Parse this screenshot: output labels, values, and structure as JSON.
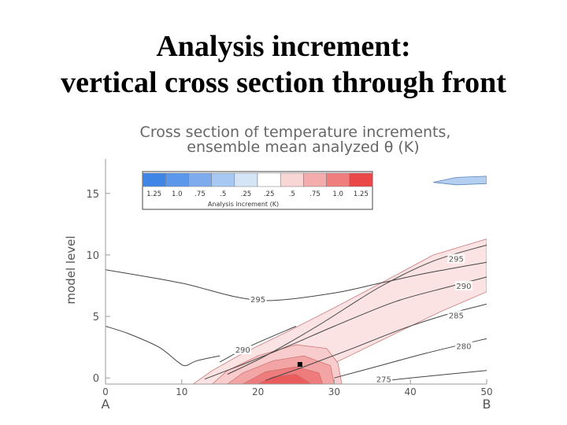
{
  "slide": {
    "title_line1": "Analysis increment:",
    "title_line2": "vertical cross section through front"
  },
  "chart_data": {
    "type": "heatmap",
    "title_line1": "Cross section of temperature increments,",
    "title_line2": "ensemble mean analyzed θ (K)",
    "xlabel": "",
    "ylabel": "model level",
    "xlim": [
      0,
      50
    ],
    "ylim": [
      -0.5,
      17.8
    ],
    "x_ticks": [
      0,
      10,
      20,
      30,
      40,
      50
    ],
    "y_ticks": [
      0,
      5,
      10,
      15
    ],
    "x_end_labels": [
      "A",
      "B"
    ],
    "legend": {
      "title": "Analysis increment (K)",
      "placement": "top-left",
      "levels": [
        "1.25",
        "1.0",
        ".75",
        ".5",
        ".25",
        ".25",
        ".5",
        ".75",
        "1.0",
        "1.25"
      ],
      "colors": [
        "#3f85e6",
        "#5b97ea",
        "#7eabee",
        "#a7c8f2",
        "#d4e5f8",
        "#ffffff",
        "#f8d6d6",
        "#f4acac",
        "#ef7f7f",
        "#ea4848"
      ]
    },
    "theta_contours": [
      {
        "value": "295",
        "points": [
          [
            0,
            8.8
          ],
          [
            10,
            7.7
          ],
          [
            17,
            6.6
          ],
          [
            22,
            6.3
          ],
          [
            30,
            6.9
          ],
          [
            36,
            7.7
          ],
          [
            42,
            8.5
          ],
          [
            50,
            9.4
          ]
        ],
        "label_at": [
          20,
          6.4
        ]
      },
      {
        "value": "295",
        "points": [
          [
            16,
            0.3
          ],
          [
            21,
            1.8
          ],
          [
            28,
            4.3
          ],
          [
            36,
            7.4
          ],
          [
            43,
            9.5
          ],
          [
            50,
            10.8
          ]
        ],
        "label_at": [
          46,
          9.7
        ]
      },
      {
        "value": "290",
        "points": [
          [
            13,
            -0.1
          ],
          [
            18,
            1.1
          ],
          [
            24,
            2.6
          ],
          [
            30,
            4.2
          ],
          [
            38,
            6.2
          ],
          [
            45,
            7.4
          ],
          [
            50,
            8.2
          ]
        ],
        "label_at": [
          47,
          7.5
        ]
      },
      {
        "value": "290",
        "points": [
          [
            15,
            1.3
          ],
          [
            19,
            2.6
          ],
          [
            25,
            4.2
          ]
        ],
        "label_at": [
          18,
          2.3
        ]
      },
      {
        "value": "285",
        "points": [
          [
            21,
            -0.2
          ],
          [
            26,
            0.9
          ],
          [
            32,
            2.3
          ],
          [
            39,
            4.0
          ],
          [
            45,
            5.2
          ],
          [
            50,
            6.0
          ]
        ],
        "label_at": [
          46,
          5.1
        ]
      },
      {
        "value": "280",
        "points": [
          [
            30,
            0.0
          ],
          [
            36,
            1.0
          ],
          [
            42,
            2.0
          ],
          [
            50,
            3.2
          ]
        ],
        "label_at": [
          47,
          2.6
        ]
      },
      {
        "value": "275",
        "points": [
          [
            36,
            -0.3
          ],
          [
            40,
            0.0
          ],
          [
            50,
            0.6
          ]
        ],
        "label_at": [
          36.5,
          -0.1
        ]
      }
    ],
    "surface_line": [
      [
        0,
        4.2
      ],
      [
        3,
        3.6
      ],
      [
        7,
        2.5
      ],
      [
        9.5,
        1.3
      ],
      [
        10.5,
        1.0
      ],
      [
        12,
        1.4
      ],
      [
        15,
        1.8
      ]
    ],
    "increment_regions": [
      {
        "level": ".25",
        "color": "#fbe3e3",
        "points": [
          [
            11.5,
            -0.5
          ],
          [
            14,
            0.6
          ],
          [
            18,
            2.0
          ],
          [
            24,
            3.8
          ],
          [
            30,
            5.7
          ],
          [
            37,
            8.0
          ],
          [
            43,
            10.0
          ],
          [
            50,
            11.3
          ],
          [
            50,
            7.0
          ],
          [
            44,
            5.4
          ],
          [
            38,
            3.6
          ],
          [
            32,
            1.8
          ],
          [
            28,
            0.6
          ],
          [
            25,
            -0.5
          ]
        ]
      },
      {
        "level": ".5",
        "color": "#f8cccc",
        "points": [
          [
            14,
            -0.5
          ],
          [
            16,
            0.6
          ],
          [
            20,
            1.8
          ],
          [
            25,
            2.7
          ],
          [
            29,
            2.4
          ],
          [
            30.5,
            1.2
          ],
          [
            31,
            -0.5
          ]
        ]
      },
      {
        "level": ".75",
        "color": "#f3a4a4",
        "points": [
          [
            16,
            -0.5
          ],
          [
            18,
            0.4
          ],
          [
            22,
            1.4
          ],
          [
            26,
            1.8
          ],
          [
            29.5,
            1.0
          ],
          [
            30,
            -0.5
          ]
        ]
      },
      {
        "level": "1.0",
        "color": "#ee7c7c",
        "points": [
          [
            18,
            -0.5
          ],
          [
            21,
            0.5
          ],
          [
            25,
            0.9
          ],
          [
            28,
            0.4
          ],
          [
            28.5,
            -0.5
          ]
        ]
      },
      {
        "level": "1.25",
        "color": "#ea5c5c",
        "points": [
          [
            20,
            -0.5
          ],
          [
            22,
            0.1
          ],
          [
            25,
            0.3
          ],
          [
            27,
            -0.5
          ]
        ]
      }
    ],
    "blue_region": {
      "level": ".25",
      "color": "#b5cff0",
      "points": [
        [
          43,
          15.9
        ],
        [
          46,
          16.3
        ],
        [
          50,
          16.4
        ],
        [
          50,
          15.8
        ],
        [
          46,
          15.7
        ]
      ]
    },
    "observation_point": [
      25.5,
      1.1
    ]
  }
}
